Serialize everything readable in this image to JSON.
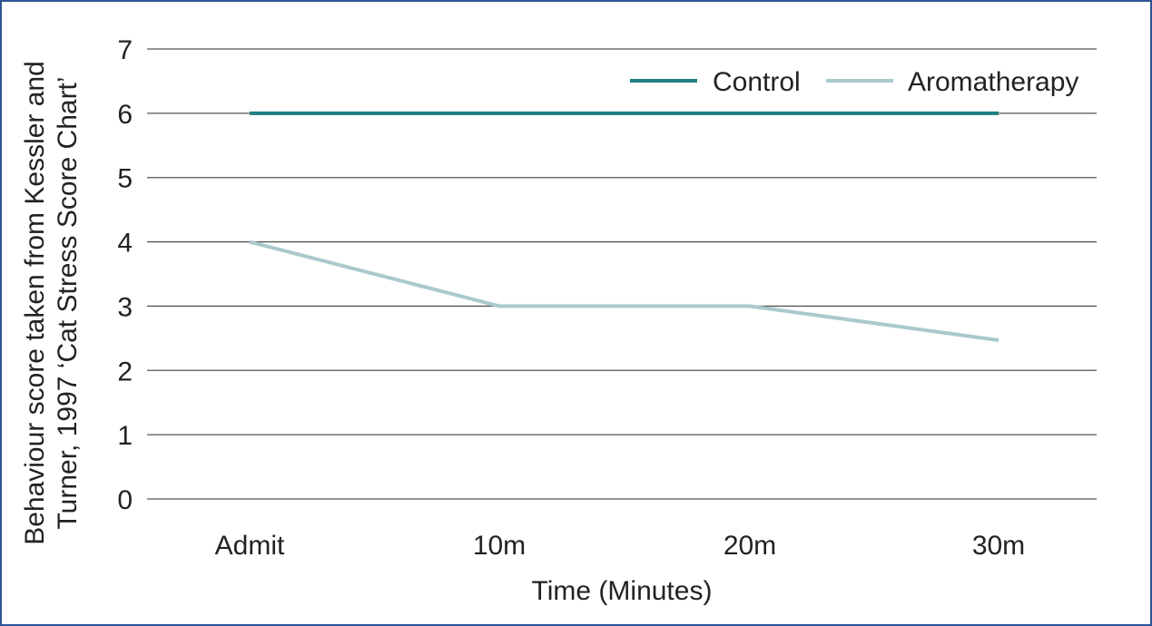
{
  "chart_data": {
    "type": "line",
    "categories": [
      "Admit",
      "10m",
      "20m",
      "30m"
    ],
    "series": [
      {
        "name": "Control",
        "values": [
          6,
          6,
          6,
          6
        ],
        "color": "#1f7f80"
      },
      {
        "name": "Aromatherapy",
        "values": [
          4,
          3,
          3,
          2.47
        ],
        "color": "#a9c9cd"
      }
    ],
    "xlabel": "Time (Minutes)",
    "ylabel_lines": [
      "Behaviour score taken from Kessler and",
      "Turner, 1997 ‘Cat Stress Score Chart’"
    ],
    "ylim": [
      0,
      7
    ],
    "yticks": [
      "0",
      "1",
      "2",
      "3",
      "4",
      "5",
      "6",
      "7"
    ],
    "grid": "horizontal",
    "legend_position": "top-right",
    "gridline_color": "#555555",
    "frame_color": "#2f5597"
  }
}
